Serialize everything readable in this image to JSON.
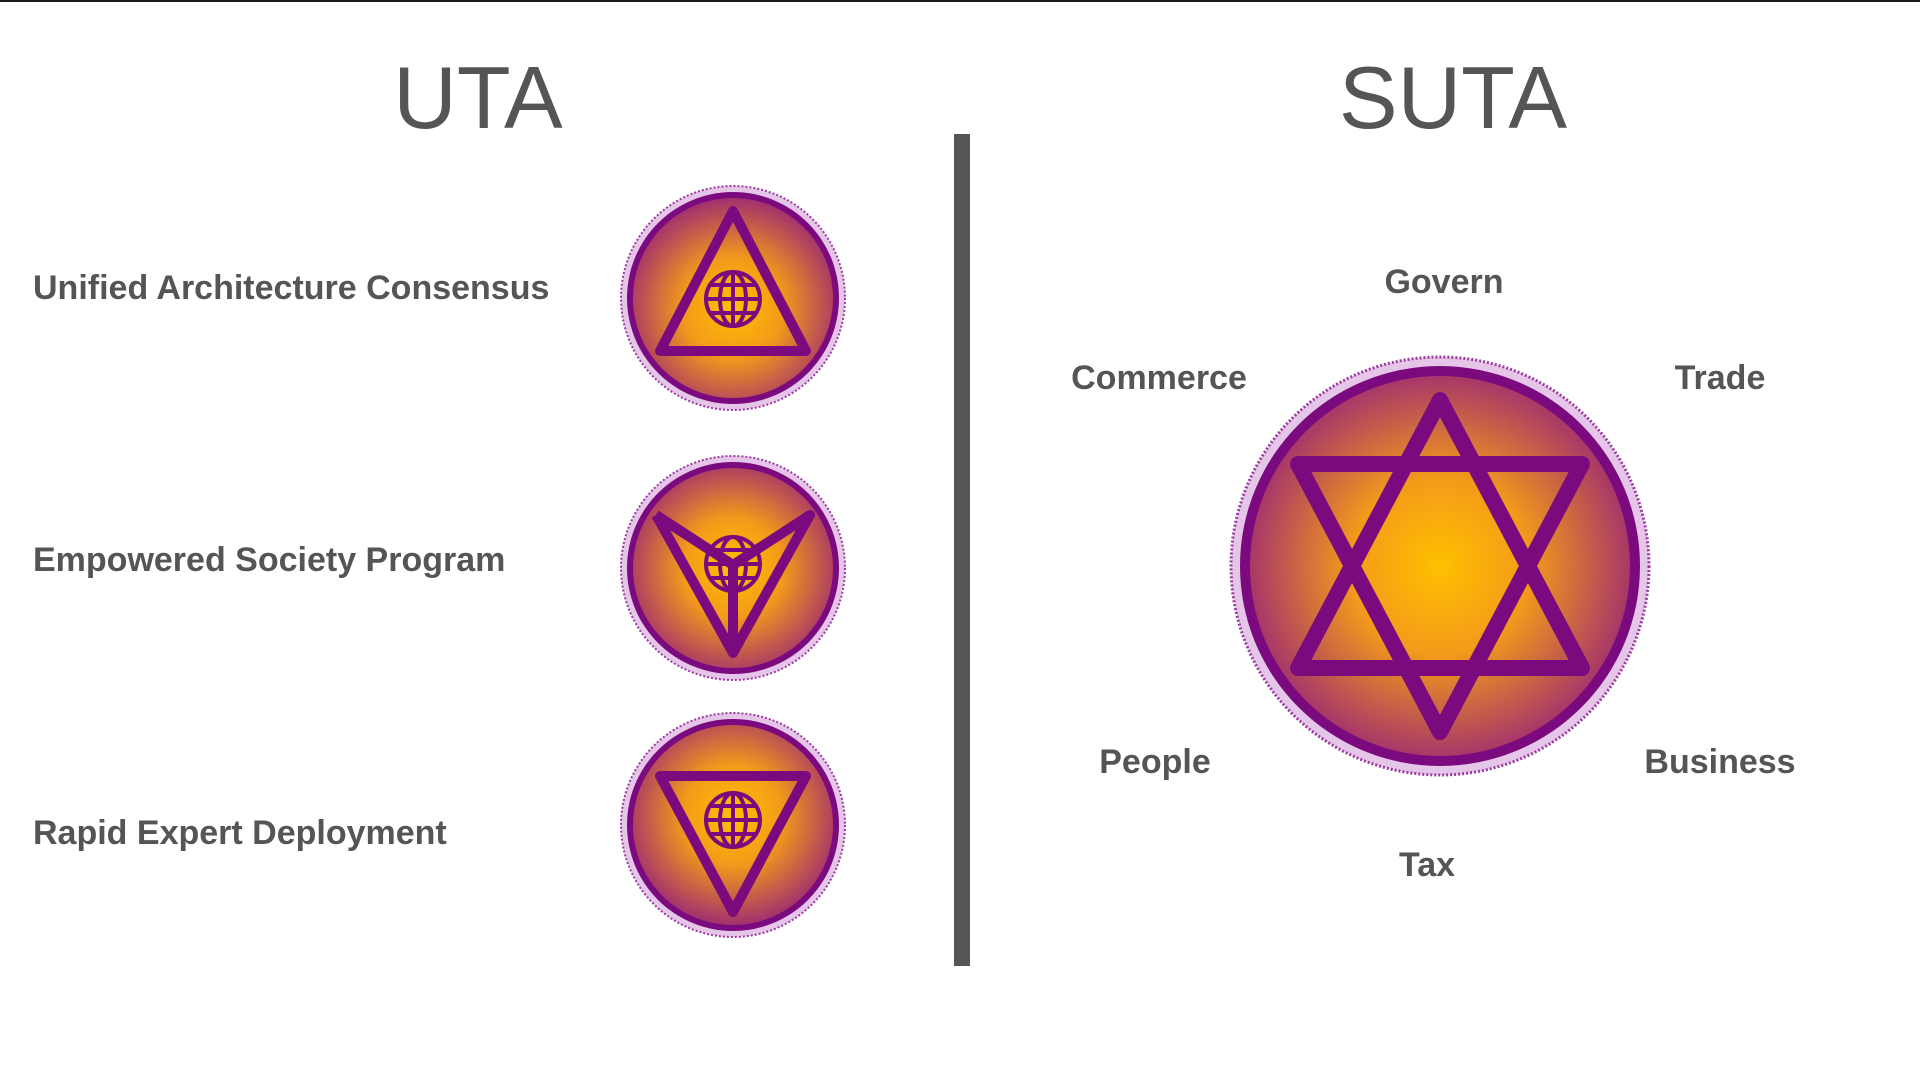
{
  "uta": {
    "title": "UTA",
    "items": [
      {
        "label": "Unified Architecture Consensus",
        "symbol": "triangle-up-globe"
      },
      {
        "label": "Empowered Society Program",
        "symbol": "chevron-globe"
      },
      {
        "label": "Rapid Expert Deployment",
        "symbol": "triangle-down-globe"
      }
    ]
  },
  "suta": {
    "title": "SUTA",
    "symbol": "hexagram",
    "labels": {
      "top": "Govern",
      "upper_left": "Commerce",
      "upper_right": "Trade",
      "lower_left": "People",
      "lower_right": "Business",
      "bottom": "Tax"
    }
  },
  "colors": {
    "text": "#555555",
    "divider": "#555555",
    "emblem_center": "#ffc000",
    "emblem_edge": "#a2306e",
    "symbol_stroke": "#7a0a7e",
    "rim": "#7a0a7e"
  }
}
